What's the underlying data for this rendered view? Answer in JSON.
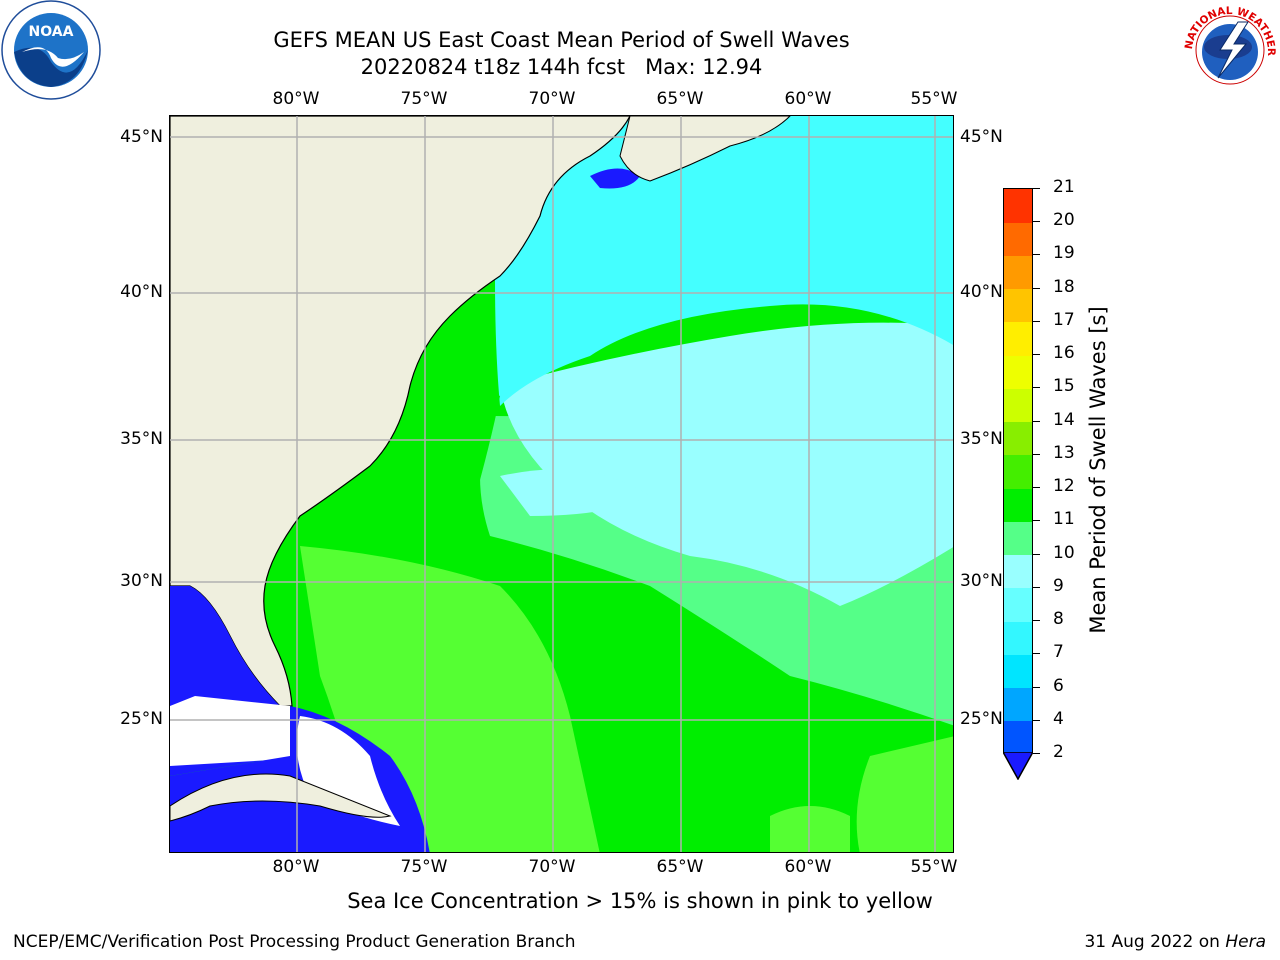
{
  "header": {
    "title_line1": "GEFS MEAN US East Coast Mean Period of Swell Waves",
    "title_line2": "20220824 t18z 144h fcst   Max: 12.94"
  },
  "logos": {
    "left": {
      "name": "NOAA",
      "text": "NOAA"
    },
    "right": {
      "name": "National Weather Service",
      "text": "NATIONAL WEATHER SERVICE"
    }
  },
  "map": {
    "lon_labels": [
      "80°W",
      "75°W",
      "70°W",
      "65°W",
      "60°W",
      "55°W"
    ],
    "lat_labels": [
      "45°N",
      "40°N",
      "35°N",
      "30°N",
      "25°N"
    ]
  },
  "colorbar": {
    "label": "Mean Period of Swell Waves [s]",
    "ticks": [
      "2",
      "4",
      "6",
      "7",
      "8",
      "9",
      "10",
      "11",
      "12",
      "13",
      "14",
      "15",
      "16",
      "17",
      "18",
      "19",
      "20",
      "21"
    ],
    "colors": [
      "#0055ff",
      "#00a6ff",
      "#00e5ff",
      "#33f7ff",
      "#66ffff",
      "#99ffff",
      "#55ff88",
      "#00ee00",
      "#44ee00",
      "#88ee00",
      "#ccff00",
      "#eeff00",
      "#ffee00",
      "#ffc400",
      "#ff9a00",
      "#ff6a00",
      "#ff3300",
      "#ff0000"
    ],
    "under_color": "#1a1aff"
  },
  "footer": {
    "sea_ice_note": "Sea Ice Concentration > 15% is shown in pink to yellow",
    "credit": "NCEP/EMC/Verification Post Processing Product Generation Branch",
    "date_text": "31 Aug 2022 on ",
    "machine": "Hera"
  }
}
